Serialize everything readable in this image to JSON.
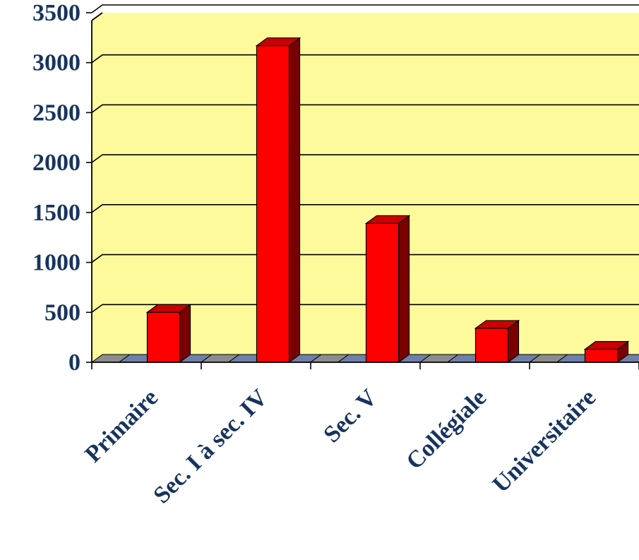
{
  "chart_data": {
    "type": "bar",
    "style": "3d-column",
    "categories": [
      "Primaire",
      "Sec. I à sec. IV",
      "Sec. V",
      "Collégiale",
      "Universitaire"
    ],
    "values": [
      500,
      3170,
      1390,
      340,
      130
    ],
    "title": "",
    "xlabel": "",
    "ylabel": "",
    "ylim": [
      0,
      3500
    ],
    "yticks": [
      0,
      500,
      1000,
      1500,
      2000,
      2500,
      3000,
      3500
    ],
    "grid": true,
    "legend": "none",
    "colors": {
      "plot_background": "#fdfa9c",
      "bar_front": "#ff0000",
      "bar_top": "#cc0000",
      "bar_side": "#7a0000",
      "floor_a": "#8c8c8c",
      "floor_b": "#6f7fa8",
      "gridline": "#000000",
      "label_text": "#17345e"
    }
  }
}
